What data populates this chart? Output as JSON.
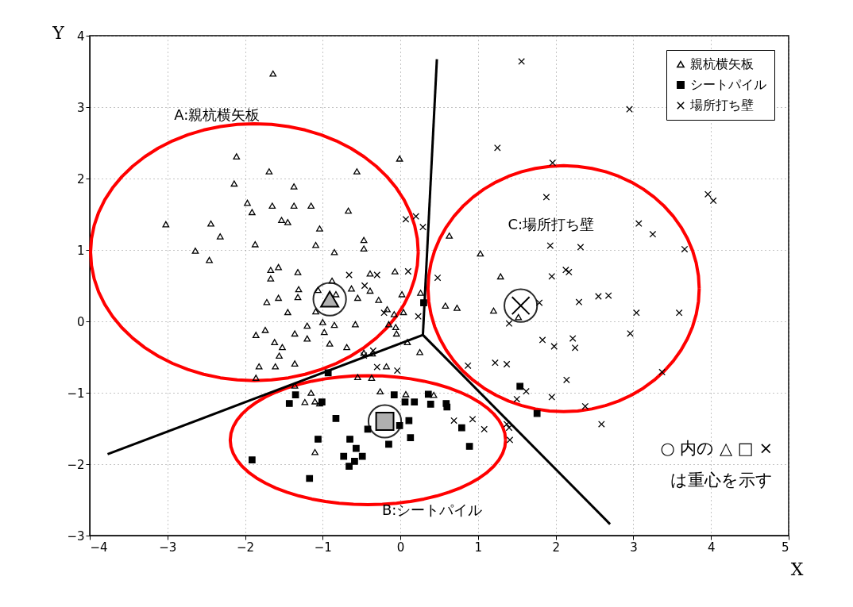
{
  "chart_data": {
    "type": "scatter",
    "xlabel": "X",
    "ylabel": "Y",
    "xlim": [
      -4,
      5
    ],
    "ylim": [
      -3,
      4
    ],
    "xticks": [
      -4,
      -3,
      -2,
      -1,
      0,
      1,
      2,
      3,
      4,
      5
    ],
    "yticks": [
      -3,
      -2,
      -1,
      0,
      1,
      2,
      3,
      4
    ],
    "grid": true,
    "legend": "top right",
    "annotations": [
      "A:親杭横矢板",
      "B:シートパイル",
      "C:場所打ち壁",
      "○ 内の △ □ ×\nは重心を示す"
    ],
    "series": [
      {
        "name": "親杭横矢板",
        "marker": "triangle",
        "color": "#000000",
        "x": [
          -1.64,
          -2.11,
          -1.69,
          -0.56,
          -0.01,
          -2.14,
          -1.37,
          -1.97,
          -1.65,
          -1.91,
          -1.37,
          -1.15,
          -0.67,
          -3.02,
          -2.44,
          -2.32,
          -1.53,
          -1.45,
          -1.04,
          -0.47,
          -2.64,
          -2.46,
          -1.87,
          -1.09,
          -0.85,
          -0.47,
          -1.57,
          -1.67,
          -1.32,
          -1.67,
          -0.39,
          -0.07,
          -1.31,
          -1.06,
          -0.88,
          -0.63,
          -1.72,
          -1.57,
          -1.32,
          -0.83,
          -0.55,
          -0.39,
          -0.28,
          0.02,
          0.26,
          -0.17,
          -0.08,
          0.04,
          -1.45,
          -1.09,
          -1.0,
          -0.85,
          -1.2,
          -0.98,
          -1.36,
          -1.2,
          -0.58,
          -1.74,
          -1.86,
          -1.62,
          -1.52,
          -0.91,
          -0.69,
          -0.15,
          -0.06,
          -0.05,
          -1.56,
          -1.36,
          -1.82,
          -1.61,
          -1.86,
          -0.36,
          -0.47,
          -0.18,
          0.25,
          0.09,
          -0.55,
          -0.37,
          -0.26,
          -1.36,
          0.07,
          0.43,
          -1.15,
          -1.1,
          -1.04,
          -1.23,
          -1.1,
          1.2,
          1.29,
          0.58,
          0.73,
          0.63,
          1.03,
          1.52
        ],
        "values": [
          3.47,
          2.31,
          2.1,
          2.1,
          2.28,
          1.93,
          1.89,
          1.66,
          1.62,
          1.53,
          1.62,
          1.62,
          1.55,
          1.36,
          1.37,
          1.19,
          1.42,
          1.39,
          1.3,
          1.14,
          0.99,
          0.86,
          1.08,
          1.07,
          0.97,
          1.02,
          0.76,
          0.72,
          0.69,
          0.6,
          0.67,
          0.7,
          0.45,
          0.44,
          0.57,
          0.46,
          0.27,
          0.33,
          0.34,
          0.38,
          0.33,
          0.43,
          0.3,
          0.38,
          0.4,
          0.17,
          0.1,
          0.13,
          0.13,
          0.14,
          -0.01,
          -0.05,
          -0.06,
          -0.15,
          -0.17,
          -0.24,
          -0.04,
          -0.12,
          -0.19,
          -0.29,
          -0.36,
          -0.31,
          -0.36,
          -0.04,
          -0.08,
          -0.17,
          -0.48,
          -0.59,
          -0.63,
          -0.63,
          -0.79,
          -0.45,
          -0.44,
          -0.63,
          -0.43,
          -0.29,
          -0.78,
          -0.79,
          -0.98,
          -0.9,
          -1.02,
          -1.03,
          -1.0,
          -1.12,
          -1.15,
          -1.13,
          -1.83,
          0.15,
          0.63,
          0.22,
          0.19,
          1.2,
          0.95,
          0.06
        ]
      },
      {
        "name": "シートパイル",
        "marker": "square",
        "color": "#000000",
        "x": [
          0.3,
          -0.93,
          -1.35,
          -1.43,
          -1.01,
          -1.06,
          -1.91,
          -1.17,
          -0.83,
          -0.65,
          -0.57,
          -0.49,
          -0.73,
          -0.59,
          -0.66,
          -0.42,
          -0.01,
          0.11,
          0.13,
          -0.15,
          -0.08,
          0.06,
          0.18,
          0.36,
          0.39,
          0.59,
          0.6,
          0.79,
          0.89,
          1.54,
          1.76
        ],
        "values": [
          0.26,
          -0.72,
          -1.03,
          -1.15,
          -1.13,
          -1.65,
          -1.94,
          -2.2,
          -1.36,
          -1.65,
          -1.78,
          -1.89,
          -1.89,
          -1.96,
          -2.03,
          -1.51,
          -1.46,
          -1.39,
          -1.63,
          -1.72,
          -1.03,
          -1.13,
          -1.13,
          -1.02,
          -1.16,
          -1.15,
          -1.2,
          -1.49,
          -1.75,
          -0.91,
          -1.29
        ]
      },
      {
        "name": "場所打ち壁",
        "marker": "cross",
        "color": "#000000",
        "x": [
          1.56,
          2.95,
          1.25,
          1.96,
          1.88,
          3.96,
          4.03,
          3.07,
          3.25,
          3.66,
          1.93,
          2.32,
          1.95,
          2.13,
          2.17,
          2.68,
          2.55,
          2.3,
          3.04,
          3.59,
          2.96,
          1.83,
          1.98,
          2.22,
          2.25,
          2.14,
          1.95,
          2.38,
          2.59,
          3.37,
          1.79,
          1.4,
          0.87,
          1.22,
          1.37,
          1.62,
          1.5,
          0.07,
          0.2,
          0.29,
          0.1,
          -0.66,
          -0.3,
          -0.46,
          0.48,
          -0.21,
          0.23,
          -0.35,
          -0.47,
          -0.3,
          -0.04,
          0.69,
          0.93,
          1.08,
          1.37,
          1.4,
          1.41
        ],
        "values": [
          3.64,
          2.97,
          2.43,
          2.22,
          1.74,
          1.78,
          1.69,
          1.37,
          1.22,
          1.01,
          1.06,
          1.04,
          0.63,
          0.72,
          0.69,
          0.36,
          0.35,
          0.27,
          0.12,
          0.12,
          -0.17,
          -0.26,
          -0.35,
          -0.24,
          -0.37,
          -0.82,
          -1.06,
          -1.19,
          -1.44,
          -0.71,
          0.26,
          -0.03,
          -0.62,
          -0.58,
          -0.6,
          -0.98,
          -1.09,
          1.43,
          1.47,
          1.32,
          0.7,
          0.65,
          0.65,
          0.5,
          0.61,
          0.12,
          0.07,
          -0.41,
          -0.48,
          -0.64,
          -0.69,
          -1.39,
          -1.37,
          -1.51,
          -1.44,
          -1.49,
          -1.66
        ]
      },
      {
        "type": "line",
        "color": "#000000",
        "x": [
          0.29,
          0.47
        ],
        "values": [
          -0.19,
          3.67
        ]
      },
      {
        "type": "line",
        "color": "#000000",
        "x": [
          -3.77,
          0.29
        ],
        "values": [
          -1.86,
          -0.19
        ]
      },
      {
        "type": "line",
        "color": "#000000",
        "x": [
          0.29,
          2.7
        ],
        "values": [
          -0.19,
          -2.84
        ]
      },
      {
        "marker": "triangle",
        "color": "#b0b0b0",
        "x": [
          -0.91
        ],
        "values": [
          0.31
        ]
      },
      {
        "marker": "square",
        "color": "#b0b0b0",
        "x": [
          -0.2
        ],
        "values": [
          -1.4
        ]
      },
      {
        "marker": "cross",
        "color": "#000000",
        "x": [
          1.55
        ],
        "values": [
          0.22
        ]
      }
    ]
  }
}
